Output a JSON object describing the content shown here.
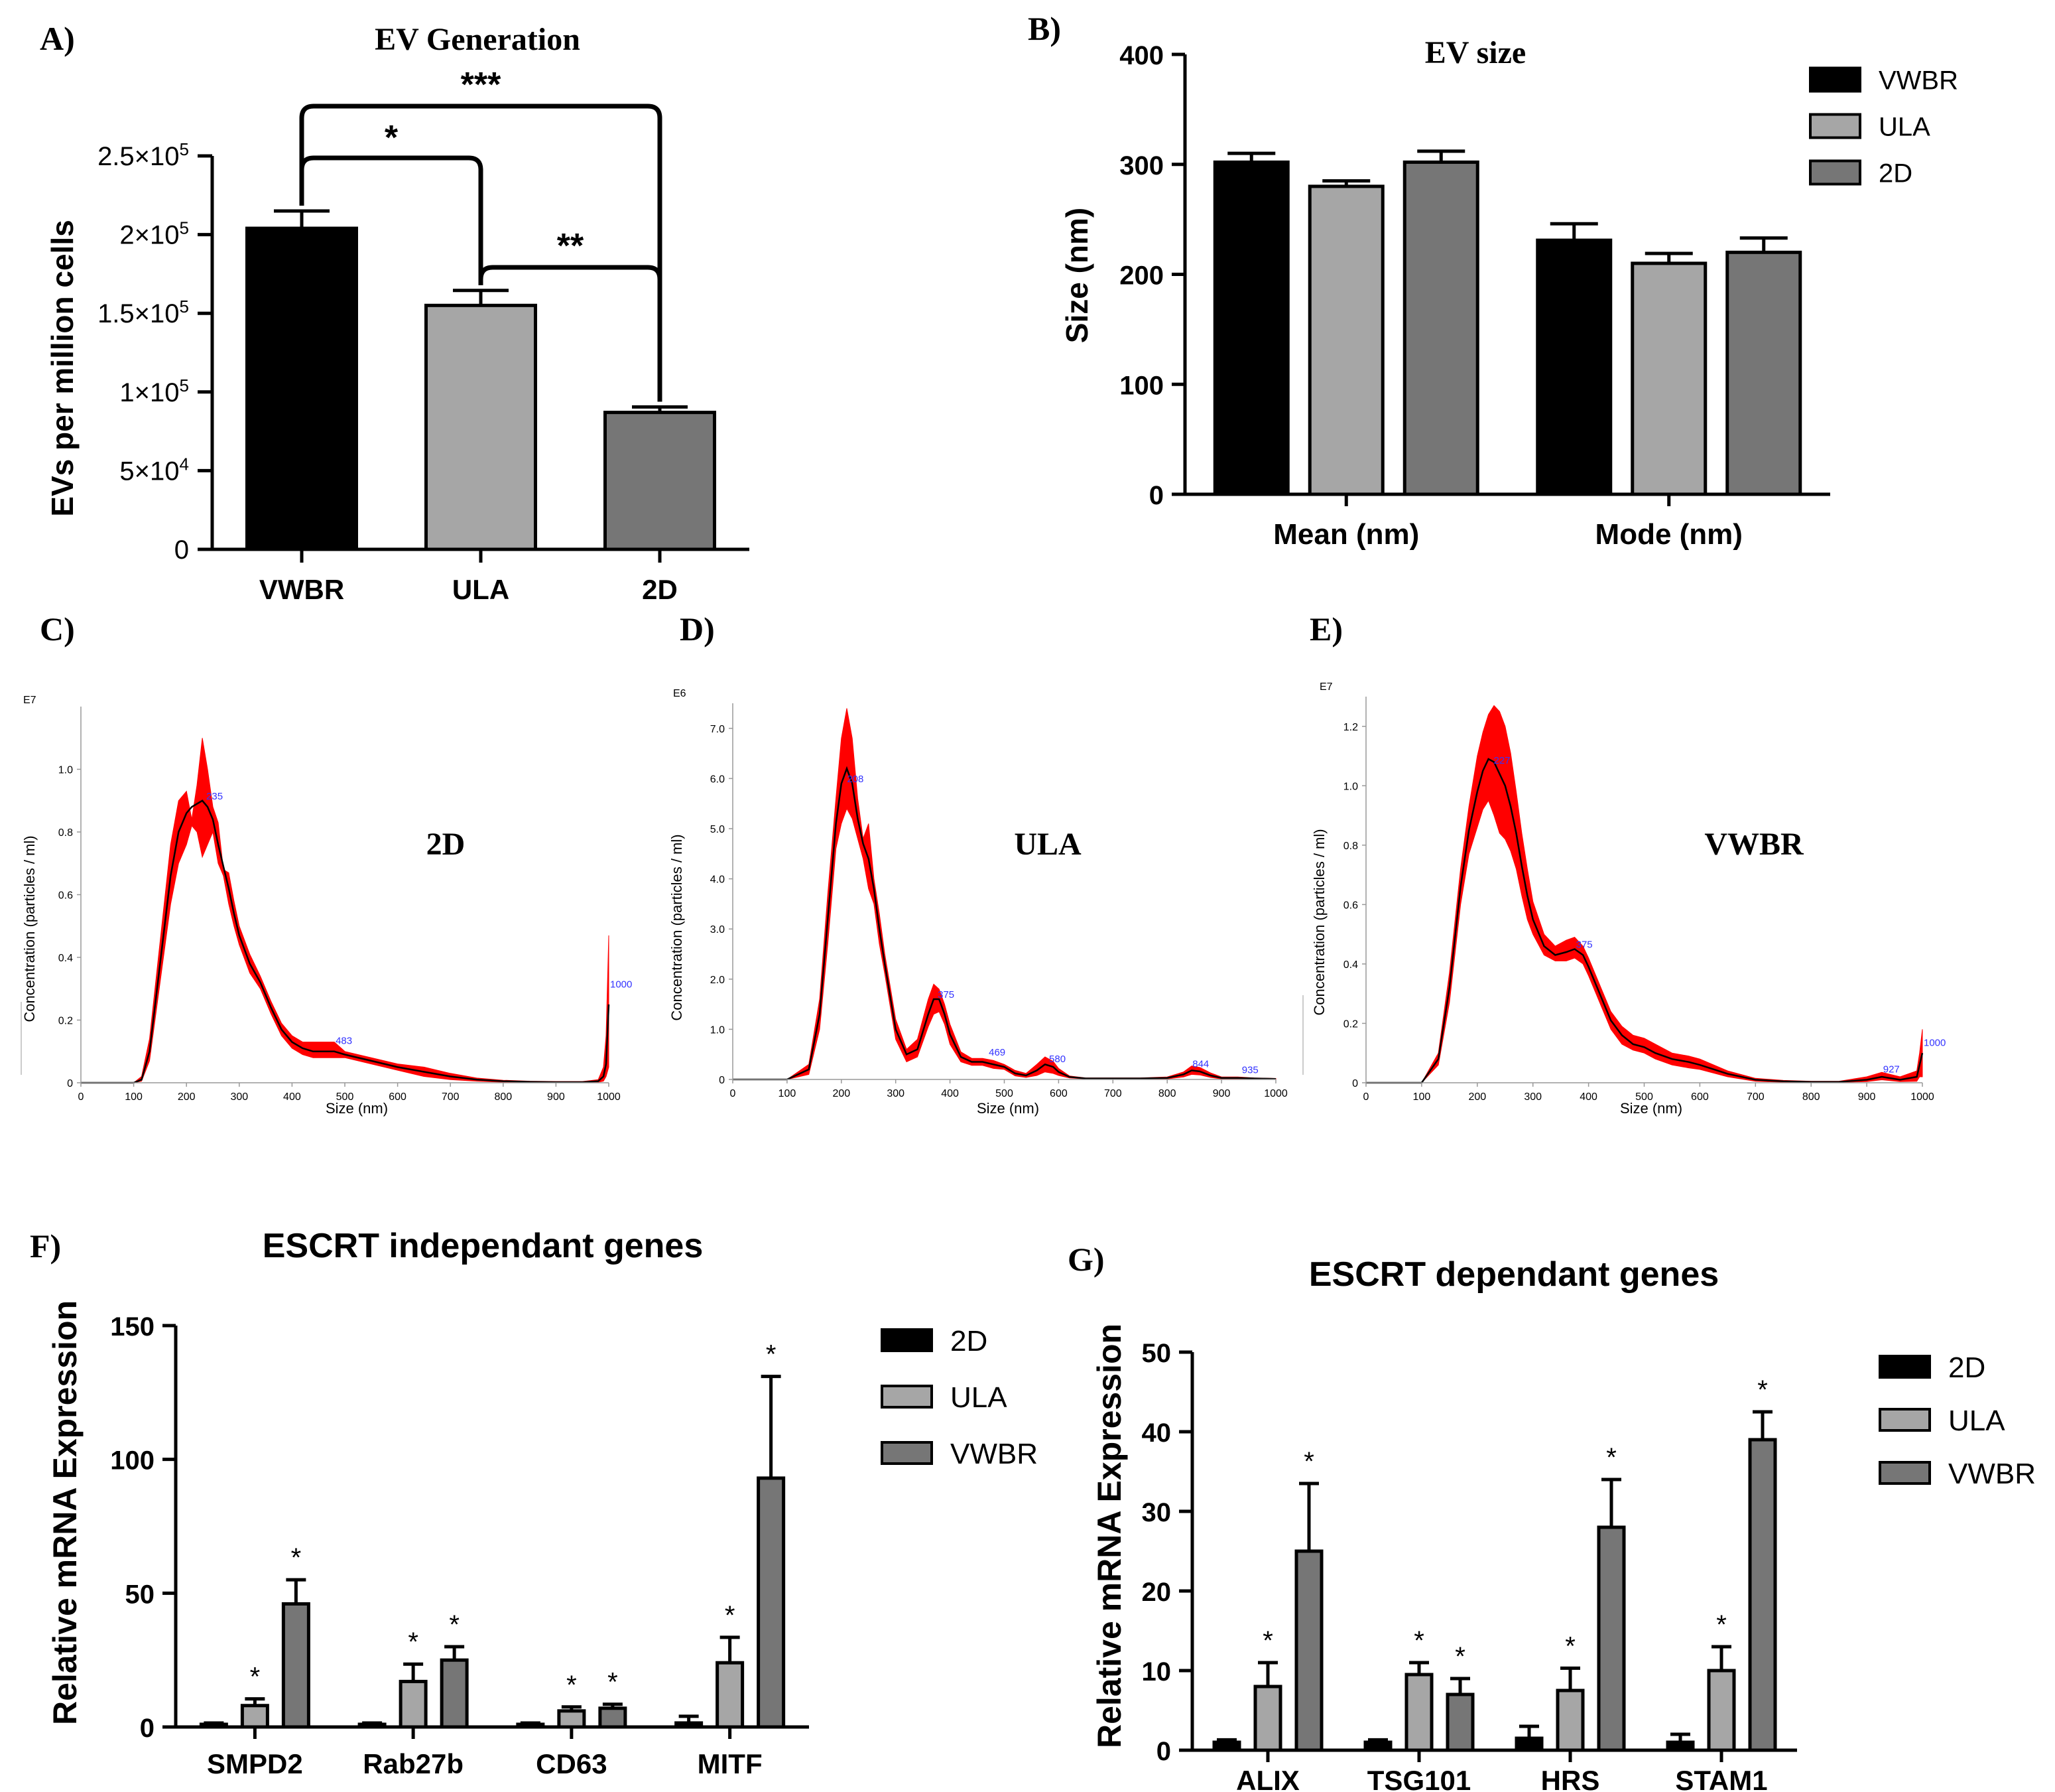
{
  "colors": {
    "black": "#000000",
    "light_gray": "#a6a6a6",
    "dark_gray": "#767676",
    "nta_band": "#ff0000",
    "nta_line": "#000000",
    "nta_label": "#3333ff"
  },
  "chart_data": [
    {
      "panel": "A)",
      "type": "bar",
      "title": "EV Generation",
      "ylabel": "EVs per million cells",
      "categories": [
        "VWBR",
        "ULA",
        "2D"
      ],
      "values": [
        204000,
        155000,
        87000
      ],
      "errors": [
        11000,
        9500,
        3500
      ],
      "ylim": [
        0,
        250000
      ],
      "yticks": [
        0,
        50000,
        100000,
        150000,
        200000,
        250000
      ],
      "ytick_labels": [
        {
          "base": "0",
          "exp": ""
        },
        {
          "base": "5×10",
          "exp": "4"
        },
        {
          "base": "1×10",
          "exp": "5"
        },
        {
          "base": "1.5×10",
          "exp": "5"
        },
        {
          "base": "2×10",
          "exp": "5"
        },
        {
          "base": "2.5×10",
          "exp": "5"
        }
      ],
      "bar_colors": [
        "#000000",
        "#a6a6a6",
        "#767676"
      ],
      "significance": [
        {
          "from": "VWBR",
          "to": "ULA",
          "label": "*"
        },
        {
          "from": "VWBR",
          "to": "2D",
          "label": "***"
        },
        {
          "from": "ULA",
          "to": "2D",
          "label": "**"
        }
      ]
    },
    {
      "panel": "B)",
      "type": "bar",
      "title": "EV size",
      "ylabel": "Size (nm)",
      "categories": [
        "Mean (nm)",
        "Mode (nm)"
      ],
      "series": [
        {
          "name": "VWBR",
          "values": [
            302,
            231
          ],
          "errors": [
            8,
            15
          ],
          "color": "#000000"
        },
        {
          "name": "ULA",
          "values": [
            280,
            210
          ],
          "errors": [
            5,
            9
          ],
          "color": "#a6a6a6"
        },
        {
          "name": "2D",
          "values": [
            302,
            220
          ],
          "errors": [
            10,
            13
          ],
          "color": "#767676"
        }
      ],
      "ylim": [
        0,
        400
      ],
      "yticks": [
        0,
        100,
        200,
        300,
        400
      ],
      "legend": "top-right"
    },
    {
      "panel": "C)",
      "type": "area",
      "inset_label": "2D",
      "ylabel": "Concentration (particles / ml)",
      "xlabel": "Size (nm)",
      "y_scale_label": "E7",
      "xlim": [
        0,
        1000
      ],
      "ylim": [
        0,
        1.2
      ],
      "xticks": [
        0,
        100,
        200,
        300,
        400,
        500,
        600,
        700,
        800,
        900,
        1000
      ],
      "yticks": [
        0,
        0.2,
        0.4,
        0.6,
        0.8,
        1.0
      ],
      "ytick_labels": [
        "0",
        "0.2",
        "0.4",
        "0.6",
        "0.8",
        "1.0"
      ],
      "x": [
        0,
        100,
        115,
        130,
        150,
        170,
        185,
        200,
        210,
        220,
        230,
        240,
        250,
        260,
        270,
        280,
        290,
        300,
        320,
        340,
        360,
        380,
        400,
        420,
        440,
        460,
        480,
        500,
        550,
        600,
        650,
        700,
        750,
        800,
        850,
        900,
        950,
        980,
        990,
        995,
        1000
      ],
      "mean": [
        0,
        0,
        0.01,
        0.1,
        0.38,
        0.66,
        0.8,
        0.86,
        0.88,
        0.89,
        0.9,
        0.88,
        0.84,
        0.76,
        0.69,
        0.62,
        0.54,
        0.47,
        0.38,
        0.32,
        0.24,
        0.17,
        0.13,
        0.11,
        0.1,
        0.1,
        0.1,
        0.09,
        0.07,
        0.05,
        0.035,
        0.02,
        0.01,
        0.005,
        0.003,
        0.002,
        0.002,
        0.005,
        0.02,
        0.06,
        0.25
      ],
      "upper": [
        0,
        0,
        0.02,
        0.14,
        0.45,
        0.76,
        0.9,
        0.93,
        0.84,
        0.95,
        1.1,
        1.0,
        0.88,
        0.83,
        0.68,
        0.67,
        0.58,
        0.5,
        0.41,
        0.34,
        0.26,
        0.19,
        0.15,
        0.13,
        0.13,
        0.13,
        0.13,
        0.1,
        0.08,
        0.06,
        0.05,
        0.03,
        0.015,
        0.008,
        0.005,
        0.004,
        0.004,
        0.01,
        0.05,
        0.15,
        0.47
      ],
      "lower": [
        0,
        0,
        0.005,
        0.07,
        0.32,
        0.57,
        0.7,
        0.76,
        0.82,
        0.8,
        0.72,
        0.76,
        0.8,
        0.7,
        0.66,
        0.57,
        0.5,
        0.44,
        0.35,
        0.3,
        0.22,
        0.15,
        0.11,
        0.09,
        0.08,
        0.08,
        0.08,
        0.08,
        0.06,
        0.04,
        0.02,
        0.01,
        0.005,
        0.002,
        0.001,
        0.001,
        0.001,
        0.002,
        0.005,
        0.02,
        0.05
      ],
      "peak_labels": [
        {
          "x": 235,
          "y": 0.9,
          "text": "235"
        },
        {
          "x": 480,
          "y": 0.12,
          "text": "483"
        },
        {
          "x": 1000,
          "y": 0.3,
          "text": "1000"
        }
      ]
    },
    {
      "panel": "D)",
      "type": "area",
      "inset_label": "ULA",
      "ylabel": "Concentration (particles / ml)",
      "xlabel": "Size (nm)",
      "y_scale_label": "E6",
      "xlim": [
        0,
        1000
      ],
      "ylim": [
        0,
        7.5
      ],
      "xticks": [
        0,
        100,
        200,
        300,
        400,
        500,
        600,
        700,
        800,
        900,
        1000
      ],
      "yticks": [
        0,
        1,
        2,
        3,
        4,
        5,
        6,
        7
      ],
      "ytick_labels": [
        "0",
        "1.0",
        "2.0",
        "3.0",
        "4.0",
        "5.0",
        "6.0",
        "7.0"
      ],
      "x": [
        0,
        100,
        140,
        160,
        175,
        190,
        200,
        210,
        220,
        230,
        240,
        250,
        260,
        270,
        280,
        300,
        320,
        340,
        360,
        370,
        380,
        390,
        400,
        420,
        440,
        460,
        480,
        500,
        520,
        540,
        560,
        575,
        590,
        600,
        620,
        650,
        700,
        750,
        800,
        830,
        845,
        860,
        880,
        900,
        930,
        960,
        1000
      ],
      "mean": [
        0,
        0,
        0.2,
        1.3,
        3.2,
        5.1,
        5.9,
        6.2,
        5.9,
        5.2,
        4.7,
        4.4,
        3.8,
        3.0,
        2.3,
        1.0,
        0.5,
        0.6,
        1.3,
        1.6,
        1.6,
        1.3,
        0.9,
        0.45,
        0.35,
        0.35,
        0.3,
        0.25,
        0.12,
        0.08,
        0.18,
        0.3,
        0.25,
        0.15,
        0.05,
        0.02,
        0.02,
        0.02,
        0.03,
        0.1,
        0.18,
        0.16,
        0.08,
        0.03,
        0.03,
        0.02,
        0.01
      ],
      "upper": [
        0,
        0,
        0.3,
        1.6,
        3.7,
        5.6,
        6.8,
        7.4,
        6.8,
        5.6,
        4.8,
        5.1,
        4.0,
        3.3,
        2.5,
        1.2,
        0.6,
        0.8,
        1.6,
        1.9,
        1.8,
        1.5,
        1.1,
        0.55,
        0.42,
        0.42,
        0.38,
        0.3,
        0.18,
        0.12,
        0.3,
        0.45,
        0.36,
        0.22,
        0.07,
        0.03,
        0.03,
        0.03,
        0.05,
        0.15,
        0.27,
        0.24,
        0.13,
        0.05,
        0.05,
        0.03,
        0.02
      ],
      "lower": [
        0,
        0,
        0.1,
        1.0,
        2.7,
        4.6,
        5.1,
        5.4,
        5.2,
        4.8,
        4.4,
        3.8,
        3.5,
        2.7,
        2.1,
        0.8,
        0.35,
        0.45,
        1.05,
        1.3,
        1.35,
        1.1,
        0.7,
        0.35,
        0.28,
        0.28,
        0.22,
        0.2,
        0.07,
        0.04,
        0.08,
        0.15,
        0.12,
        0.08,
        0.03,
        0.01,
        0.01,
        0.01,
        0.01,
        0.05,
        0.1,
        0.09,
        0.04,
        0.01,
        0.01,
        0.01,
        0.0
      ],
      "peak_labels": [
        {
          "x": 208,
          "y": 5.9,
          "text": "208"
        },
        {
          "x": 375,
          "y": 1.6,
          "text": "375"
        },
        {
          "x": 469,
          "y": 0.45,
          "text": "469"
        },
        {
          "x": 580,
          "y": 0.32,
          "text": "580"
        },
        {
          "x": 844,
          "y": 0.22,
          "text": "844"
        },
        {
          "x": 935,
          "y": 0.1,
          "text": "935"
        }
      ]
    },
    {
      "panel": "E)",
      "type": "area",
      "inset_label": "VWBR",
      "ylabel": "Concentration (particles / ml)",
      "xlabel": "Size (nm)",
      "y_scale_label": "E7",
      "xlim": [
        0,
        1000
      ],
      "ylim": [
        0,
        1.3
      ],
      "xticks": [
        0,
        100,
        200,
        300,
        400,
        500,
        600,
        700,
        800,
        900,
        1000
      ],
      "yticks": [
        0,
        0.2,
        0.4,
        0.6,
        0.8,
        1.0,
        1.2
      ],
      "ytick_labels": [
        "0",
        "0.2",
        "0.4",
        "0.6",
        "0.8",
        "1.0",
        "1.2"
      ],
      "x": [
        0,
        100,
        130,
        150,
        170,
        185,
        200,
        210,
        220,
        230,
        240,
        250,
        260,
        270,
        280,
        290,
        300,
        320,
        340,
        360,
        375,
        390,
        400,
        420,
        440,
        460,
        480,
        500,
        520,
        550,
        580,
        600,
        650,
        700,
        750,
        800,
        850,
        900,
        927,
        960,
        990,
        995,
        1000
      ],
      "mean": [
        0,
        0,
        0.08,
        0.32,
        0.66,
        0.85,
        0.98,
        1.05,
        1.09,
        1.08,
        1.04,
        1.0,
        0.93,
        0.84,
        0.73,
        0.63,
        0.55,
        0.46,
        0.43,
        0.44,
        0.45,
        0.43,
        0.39,
        0.3,
        0.21,
        0.16,
        0.13,
        0.12,
        0.1,
        0.08,
        0.07,
        0.06,
        0.03,
        0.01,
        0.005,
        0.003,
        0.003,
        0.01,
        0.02,
        0.01,
        0.02,
        0.06,
        0.1
      ],
      "upper": [
        0,
        0,
        0.1,
        0.37,
        0.72,
        0.93,
        1.1,
        1.18,
        1.24,
        1.27,
        1.25,
        1.2,
        1.11,
        0.98,
        0.84,
        0.72,
        0.61,
        0.5,
        0.46,
        0.48,
        0.49,
        0.46,
        0.42,
        0.33,
        0.24,
        0.19,
        0.16,
        0.15,
        0.13,
        0.1,
        0.09,
        0.08,
        0.04,
        0.015,
        0.008,
        0.005,
        0.005,
        0.02,
        0.035,
        0.02,
        0.04,
        0.1,
        0.18
      ],
      "lower": [
        0,
        0,
        0.06,
        0.27,
        0.6,
        0.77,
        0.86,
        0.92,
        0.95,
        0.9,
        0.84,
        0.82,
        0.78,
        0.72,
        0.63,
        0.55,
        0.5,
        0.43,
        0.41,
        0.41,
        0.42,
        0.4,
        0.36,
        0.27,
        0.18,
        0.13,
        0.11,
        0.1,
        0.08,
        0.06,
        0.05,
        0.045,
        0.02,
        0.005,
        0.002,
        0.001,
        0.001,
        0.004,
        0.01,
        0.004,
        0.005,
        0.02,
        0.02
      ],
      "peak_labels": [
        {
          "x": 227,
          "y": 1.07,
          "text": "227"
        },
        {
          "x": 375,
          "y": 0.45,
          "text": "375"
        },
        {
          "x": 927,
          "y": 0.03,
          "text": "927"
        },
        {
          "x": 1000,
          "y": 0.12,
          "text": "1000"
        }
      ]
    },
    {
      "panel": "F)",
      "type": "bar",
      "title": "ESCRT independant genes",
      "ylabel": "Relative mRNA Expression",
      "categories": [
        "SMPD2",
        "Rab27b",
        "CD63",
        "MITF"
      ],
      "series": [
        {
          "name": "2D",
          "values": [
            1,
            1,
            1,
            1.5
          ],
          "errors": [
            0.5,
            0.5,
            0.5,
            2.5
          ],
          "color": "#000000"
        },
        {
          "name": "ULA",
          "values": [
            8,
            17,
            6,
            24
          ],
          "errors": [
            2.5,
            6.5,
            1.5,
            9.5
          ],
          "color": "#a6a6a6"
        },
        {
          "name": "VWBR",
          "values": [
            46,
            25,
            7,
            93
          ],
          "errors": [
            9,
            5,
            1.5,
            38
          ],
          "color": "#767676"
        }
      ],
      "stars": [
        [
          false,
          true,
          true
        ],
        [
          false,
          true,
          true
        ],
        [
          false,
          true,
          true
        ],
        [
          false,
          true,
          true
        ]
      ],
      "star_label": "*",
      "ylim": [
        0,
        150
      ],
      "yticks": [
        0,
        50,
        100,
        150
      ],
      "legend": "top-right"
    },
    {
      "panel": "G)",
      "type": "bar",
      "title": "ESCRT dependant genes",
      "ylabel": "Relative mRNA Expression",
      "categories": [
        "ALIX",
        "TSG101",
        "HRS",
        "STAM1"
      ],
      "series": [
        {
          "name": "2D",
          "values": [
            1,
            1,
            1.5,
            1
          ],
          "errors": [
            0.3,
            0.3,
            1.5,
            1
          ],
          "color": "#000000"
        },
        {
          "name": "ULA",
          "values": [
            8,
            9.5,
            7.5,
            10
          ],
          "errors": [
            3,
            1.5,
            2.8,
            3
          ],
          "color": "#a6a6a6"
        },
        {
          "name": "VWBR",
          "values": [
            25,
            7,
            28,
            39
          ],
          "errors": [
            8.5,
            2,
            6,
            3.5
          ],
          "color": "#767676"
        }
      ],
      "stars": [
        [
          false,
          true,
          true
        ],
        [
          false,
          true,
          true
        ],
        [
          false,
          true,
          true
        ],
        [
          false,
          true,
          true
        ]
      ],
      "star_label": "*",
      "ylim": [
        0,
        50
      ],
      "yticks": [
        0,
        10,
        20,
        30,
        40,
        50
      ],
      "legend": "top-right"
    }
  ]
}
